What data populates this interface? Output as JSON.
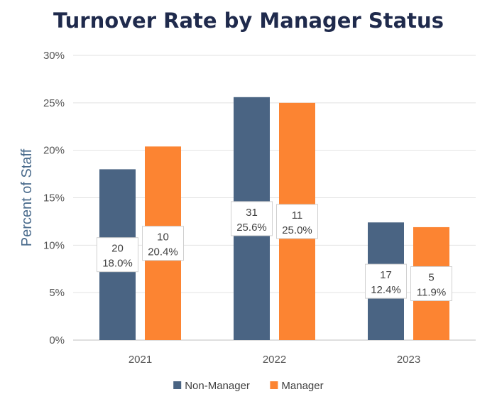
{
  "chart_data": {
    "type": "bar",
    "title": "Turnover Rate by Manager Status",
    "ylabel": "Percent of Staff",
    "xlabel": "",
    "categories": [
      "2021",
      "2022",
      "2023"
    ],
    "ylim": [
      0,
      30
    ],
    "yticks": [
      0,
      5,
      10,
      15,
      20,
      25,
      30
    ],
    "ytick_labels": [
      "0%",
      "5%",
      "10%",
      "15%",
      "20%",
      "25%",
      "30%"
    ],
    "grid": true,
    "legend_position": "bottom",
    "series": [
      {
        "name": "Non-Manager",
        "color": "#4a6483",
        "values": [
          18.0,
          25.6,
          12.4
        ],
        "counts": [
          "20",
          "31",
          "17"
        ],
        "value_labels": [
          "18.0%",
          "25.6%",
          "12.4%"
        ]
      },
      {
        "name": "Manager",
        "color": "#fc8432",
        "values": [
          20.4,
          25.0,
          11.9
        ],
        "counts": [
          "10",
          "11",
          "5"
        ],
        "value_labels": [
          "20.4%",
          "25.0%",
          "11.9%"
        ]
      }
    ]
  }
}
